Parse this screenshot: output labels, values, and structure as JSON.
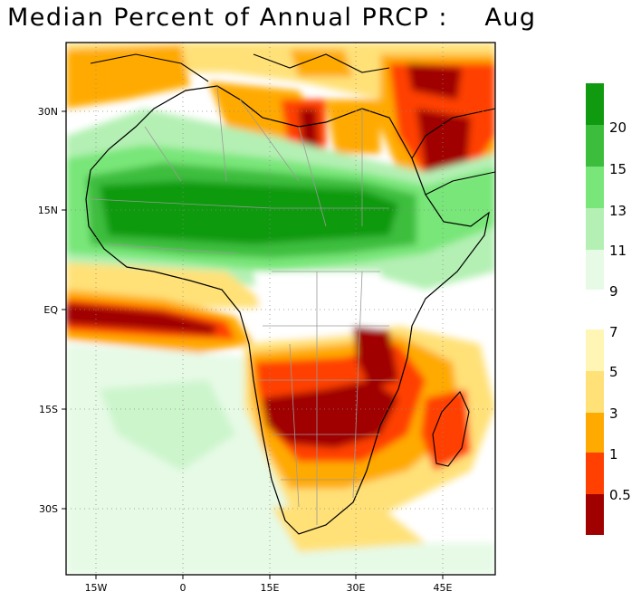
{
  "title": "Median Percent of Annual PRCP :    Aug",
  "axes": {
    "lat_ticks": [
      "30N",
      "15N",
      "EQ",
      "15S",
      "30S"
    ],
    "lon_ticks": [
      "15W",
      "0",
      "15E",
      "30E",
      "45E"
    ]
  },
  "colorbar": {
    "upper": [
      {
        "label": "20",
        "color": "#109a10"
      },
      {
        "label": "15",
        "color": "#3cbe3c"
      },
      {
        "label": "13",
        "color": "#78e678"
      },
      {
        "label": "11",
        "color": "#b4f0b4"
      },
      {
        "label": "9",
        "color": "#e6fae6"
      }
    ],
    "lower": [
      {
        "label": "7",
        "color": "#fff5b4"
      },
      {
        "label": "5",
        "color": "#ffe178"
      },
      {
        "label": "3",
        "color": "#ffaa00"
      },
      {
        "label": "1",
        "color": "#ff4000"
      },
      {
        "label": "0.5",
        "color": "#a00000"
      }
    ]
  }
}
